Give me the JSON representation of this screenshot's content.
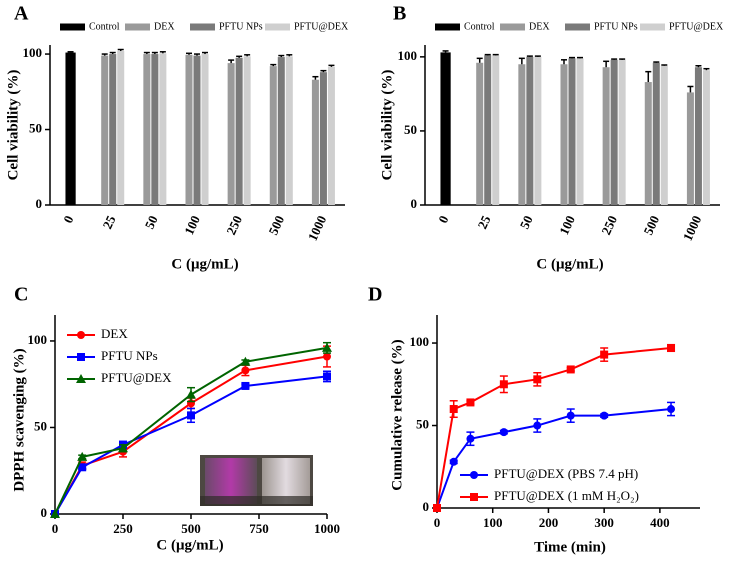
{
  "chart_data": [
    {
      "type": "bar",
      "panel_label": "A",
      "xlabel": "C (μg/mL)",
      "ylabel": "Cell viability (%)",
      "categories": [
        "0",
        "25",
        "50",
        "100",
        "250",
        "500",
        "1000"
      ],
      "series": [
        {
          "name": "Control",
          "color": "#000000",
          "values": [
            101,
            null,
            null,
            null,
            null,
            null,
            null
          ],
          "errors": [
            0.5,
            null,
            null,
            null,
            null,
            null,
            null
          ]
        },
        {
          "name": "DEX",
          "color": "#9a9a9a",
          "values": [
            null,
            99,
            100,
            99.5,
            94,
            92,
            83
          ],
          "errors": [
            null,
            1,
            1,
            1,
            2,
            1,
            2
          ]
        },
        {
          "name": "PFTU NPs",
          "color": "#7a7a7a",
          "values": [
            null,
            100,
            100,
            99,
            97.5,
            98,
            88
          ],
          "errors": [
            null,
            1,
            1,
            1,
            1,
            1,
            1
          ]
        },
        {
          "name": "PFTU@DEX",
          "color": "#cfcfcf",
          "values": [
            null,
            102,
            100.5,
            100,
            98.5,
            98.5,
            91.5
          ],
          "errors": [
            null,
            1,
            1,
            1,
            1,
            1,
            1
          ]
        }
      ],
      "ylim": [
        0,
        106
      ],
      "yticks": [
        0,
        50,
        100
      ]
    },
    {
      "type": "bar",
      "panel_label": "B",
      "xlabel": "C (μg/mL)",
      "ylabel": "Cell viability (%)",
      "categories": [
        "0",
        "25",
        "50",
        "100",
        "250",
        "500",
        "1000"
      ],
      "series": [
        {
          "name": "Control",
          "color": "#000000",
          "values": [
            103,
            null,
            null,
            null,
            null,
            null,
            null
          ],
          "errors": [
            1,
            null,
            null,
            null,
            null,
            null,
            null
          ]
        },
        {
          "name": "DEX",
          "color": "#9a9a9a",
          "values": [
            null,
            96,
            95,
            95,
            93,
            83,
            76
          ],
          "errors": [
            null,
            3,
            4,
            3,
            4,
            7,
            4
          ]
        },
        {
          "name": "PFTU NPs",
          "color": "#7a7a7a",
          "values": [
            null,
            101,
            100,
            99,
            98,
            96,
            93
          ],
          "errors": [
            null,
            0.5,
            0.5,
            0.5,
            0.5,
            0.5,
            1
          ]
        },
        {
          "name": "PFTU@DEX",
          "color": "#cfcfcf",
          "values": [
            null,
            101,
            100,
            99,
            98,
            94,
            91
          ],
          "errors": [
            null,
            0.5,
            0.5,
            0.5,
            0.5,
            0.5,
            1
          ]
        }
      ],
      "ylim": [
        0,
        108
      ],
      "yticks": [
        0,
        50,
        100
      ]
    },
    {
      "type": "line",
      "panel_label": "C",
      "xlabel": "C (μg/mL)",
      "ylabel": "DPPH scavenging (%)",
      "x": [
        0,
        100,
        250,
        500,
        700,
        1000
      ],
      "series": [
        {
          "name": "DEX",
          "color": "#ff0000",
          "marker": "circle",
          "values": [
            0,
            28,
            36,
            64,
            83,
            91
          ],
          "errors": [
            0,
            2,
            3,
            3,
            3,
            6
          ]
        },
        {
          "name": "PFTU NPs",
          "color": "#0000ff",
          "marker": "square",
          "values": [
            0,
            27,
            40,
            57,
            74,
            79.5
          ],
          "errors": [
            0,
            1,
            2,
            4,
            1,
            3
          ]
        },
        {
          "name": "PFTU@DEX",
          "color": "#006400",
          "marker": "triangle",
          "values": [
            0,
            33,
            38,
            69,
            88,
            96
          ],
          "errors": [
            0,
            1,
            2,
            4,
            1,
            3
          ]
        }
      ],
      "xlim": [
        0,
        1000
      ],
      "xticks": [
        0,
        250,
        500,
        750,
        1000
      ],
      "ylim": [
        0,
        115
      ],
      "yticks": [
        0,
        50,
        100
      ],
      "legend": "upper left"
    },
    {
      "type": "line",
      "panel_label": "D",
      "xlabel": "Time (min)",
      "ylabel": "Cumulative release (%)",
      "x": [
        0,
        30,
        60,
        120,
        180,
        240,
        300,
        420
      ],
      "series": [
        {
          "name": "PFTU@DEX (PBS 7.4 pH)",
          "color": "#0000ff",
          "marker": "circle",
          "values": [
            0,
            28,
            42,
            46,
            50,
            56,
            56,
            60
          ],
          "errors": [
            0,
            1,
            4,
            1,
            4,
            4,
            1,
            4
          ]
        },
        {
          "name": "PFTU@DEX (1 mM H₂O₂)",
          "color": "#ff0000",
          "marker": "square",
          "values": [
            0,
            60,
            64,
            75,
            78,
            84,
            93,
            97
          ],
          "errors": [
            0,
            5,
            1,
            5,
            4,
            1,
            4,
            2
          ]
        }
      ],
      "xlim": [
        0,
        472
      ],
      "xticks": [
        0,
        100,
        200,
        300,
        400
      ],
      "ylim": [
        0,
        117
      ],
      "yticks": [
        0,
        50,
        100
      ],
      "legend": "lower right"
    }
  ]
}
